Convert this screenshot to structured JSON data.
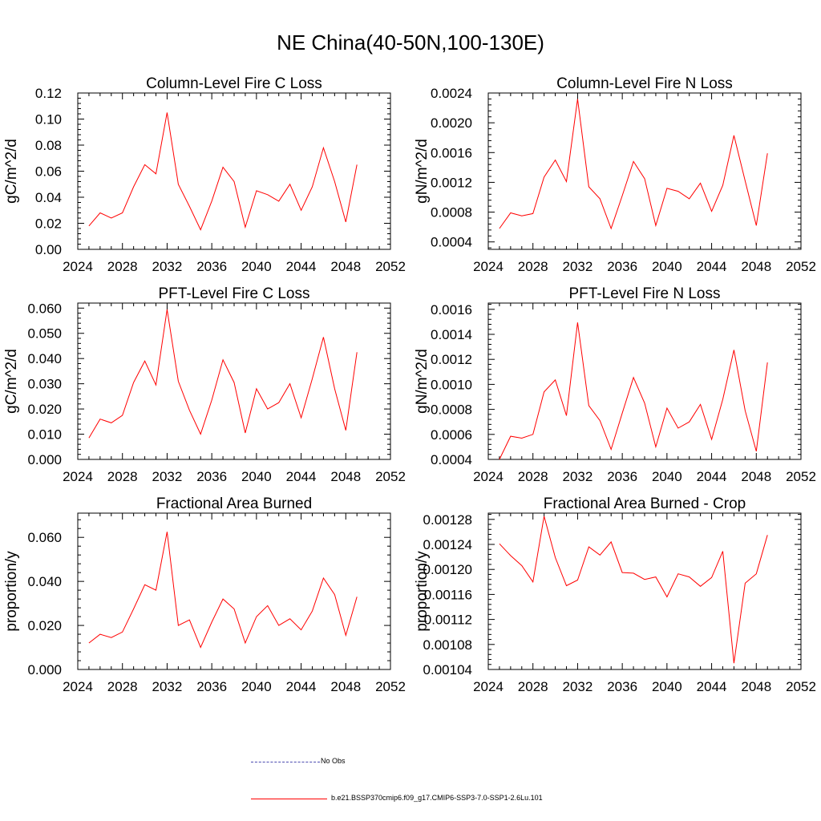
{
  "figure": {
    "title": "NE China(40-50N,100-130E)"
  },
  "legend": {
    "obs_label": "No Obs",
    "model_label": "b.e21.BSSP370cmip6.f09_g17.CMIP6-SSP3-7.0-SSP1-2.6Lu.101",
    "colors": {
      "obs": "#4a4ab0",
      "model": "#ff0000"
    }
  },
  "chart_data": [
    {
      "type": "line",
      "title": "Column-Level Fire C Loss",
      "xlabel": "",
      "ylabel": "gC/m^2/d",
      "xlim": [
        2024,
        2052
      ],
      "ylim": [
        0.0,
        0.12
      ],
      "xticks": [
        "2024",
        "2028",
        "2032",
        "2036",
        "2040",
        "2044",
        "2048",
        "2052"
      ],
      "yticks": [
        "0.00",
        "0.02",
        "0.04",
        "0.06",
        "0.08",
        "0.10",
        "0.12"
      ],
      "x": [
        2025,
        2026,
        2027,
        2028,
        2029,
        2030,
        2031,
        2032,
        2033,
        2034,
        2035,
        2036,
        2037,
        2038,
        2039,
        2040,
        2041,
        2042,
        2043,
        2044,
        2045,
        2046,
        2047,
        2048,
        2049
      ],
      "series": [
        {
          "color": "#ff0000",
          "values": [
            0.018,
            0.028,
            0.024,
            0.028,
            0.048,
            0.065,
            0.058,
            0.105,
            0.05,
            0.033,
            0.015,
            0.037,
            0.063,
            0.052,
            0.017,
            0.045,
            0.042,
            0.037,
            0.05,
            0.03,
            0.048,
            0.078,
            0.052,
            0.021,
            0.065
          ]
        }
      ]
    },
    {
      "type": "line",
      "title": "Column-Level Fire N Loss",
      "xlabel": "",
      "ylabel": "gN/m^2/d",
      "xlim": [
        2024,
        2052
      ],
      "ylim": [
        0.0003,
        0.0024
      ],
      "xticks": [
        "2024",
        "2028",
        "2032",
        "2036",
        "2040",
        "2044",
        "2048",
        "2052"
      ],
      "yticks": [
        "0.0004",
        "0.0008",
        "0.0012",
        "0.0016",
        "0.0020",
        "0.0024"
      ],
      "x": [
        2025,
        2026,
        2027,
        2028,
        2029,
        2030,
        2031,
        2032,
        2033,
        2034,
        2035,
        2036,
        2037,
        2038,
        2039,
        2040,
        2041,
        2042,
        2043,
        2044,
        2045,
        2046,
        2047,
        2048,
        2049
      ],
      "series": [
        {
          "color": "#ff0000",
          "values": [
            0.00058,
            0.00079,
            0.00075,
            0.00078,
            0.00127,
            0.0015,
            0.00121,
            0.00232,
            0.00114,
            0.00098,
            0.00058,
            0.00102,
            0.00148,
            0.00125,
            0.00062,
            0.00112,
            0.00108,
            0.00098,
            0.00119,
            0.00081,
            0.00116,
            0.00183,
            0.00122,
            0.00062,
            0.00159
          ]
        }
      ]
    },
    {
      "type": "line",
      "title": "PFT-Level Fire C Loss",
      "xlabel": "",
      "ylabel": "gC/m^2/d",
      "xlim": [
        2024,
        2052
      ],
      "ylim": [
        0.0,
        0.062
      ],
      "xticks": [
        "2024",
        "2028",
        "2032",
        "2036",
        "2040",
        "2044",
        "2048",
        "2052"
      ],
      "yticks": [
        "0.000",
        "0.010",
        "0.020",
        "0.030",
        "0.040",
        "0.050",
        "0.060"
      ],
      "x": [
        2025,
        2026,
        2027,
        2028,
        2029,
        2030,
        2031,
        2032,
        2033,
        2034,
        2035,
        2036,
        2037,
        2038,
        2039,
        2040,
        2041,
        2042,
        2043,
        2044,
        2045,
        2046,
        2047,
        2048,
        2049
      ],
      "series": [
        {
          "color": "#ff0000",
          "values": [
            0.0085,
            0.016,
            0.0145,
            0.0175,
            0.0305,
            0.039,
            0.0295,
            0.0595,
            0.031,
            0.0195,
            0.01,
            0.0235,
            0.0395,
            0.0305,
            0.0105,
            0.028,
            0.02,
            0.0225,
            0.03,
            0.0165,
            0.032,
            0.0485,
            0.028,
            0.0115,
            0.0425
          ]
        }
      ]
    },
    {
      "type": "line",
      "title": "PFT-Level Fire N Loss",
      "xlabel": "",
      "ylabel": "gN/m^2/d",
      "xlim": [
        2024,
        2052
      ],
      "ylim": [
        0.0004,
        0.00165
      ],
      "xticks": [
        "2024",
        "2028",
        "2032",
        "2036",
        "2040",
        "2044",
        "2048",
        "2052"
      ],
      "yticks": [
        "0.0004",
        "0.0006",
        "0.0008",
        "0.0010",
        "0.0012",
        "0.0014",
        "0.0016"
      ],
      "x": [
        2025,
        2026,
        2027,
        2028,
        2029,
        2030,
        2031,
        2032,
        2033,
        2034,
        2035,
        2036,
        2037,
        2038,
        2039,
        2040,
        2041,
        2042,
        2043,
        2044,
        2045,
        2046,
        2047,
        2048,
        2049
      ],
      "series": [
        {
          "color": "#ff0000",
          "values": [
            0.0004,
            0.000585,
            0.00057,
            0.0006,
            0.00094,
            0.001035,
            0.00075,
            0.001495,
            0.00083,
            0.00071,
            0.00048,
            0.00077,
            0.001055,
            0.00085,
            0.0005,
            0.00081,
            0.00065,
            0.0007,
            0.00084,
            0.00056,
            0.00088,
            0.001275,
            0.00079,
            0.000465,
            0.001175
          ]
        }
      ]
    },
    {
      "type": "line",
      "title": "Fractional Area Burned",
      "xlabel": "",
      "ylabel": "proportion/y",
      "xlim": [
        2024,
        2052
      ],
      "ylim": [
        0.0,
        0.071
      ],
      "xticks": [
        "2024",
        "2028",
        "2032",
        "2036",
        "2040",
        "2044",
        "2048",
        "2052"
      ],
      "yticks": [
        "0.000",
        "0.020",
        "0.040",
        "0.060"
      ],
      "x": [
        2025,
        2026,
        2027,
        2028,
        2029,
        2030,
        2031,
        2032,
        2033,
        2034,
        2035,
        2036,
        2037,
        2038,
        2039,
        2040,
        2041,
        2042,
        2043,
        2044,
        2045,
        2046,
        2047,
        2048,
        2049
      ],
      "series": [
        {
          "color": "#ff0000",
          "values": [
            0.012,
            0.016,
            0.0145,
            0.017,
            0.0275,
            0.0385,
            0.036,
            0.0625,
            0.02,
            0.0225,
            0.01,
            0.0215,
            0.032,
            0.0275,
            0.012,
            0.024,
            0.029,
            0.02,
            0.023,
            0.018,
            0.0265,
            0.0415,
            0.034,
            0.0155,
            0.033
          ]
        }
      ]
    },
    {
      "type": "line",
      "title": "Fractional Area Burned - Crop",
      "xlabel": "",
      "ylabel": "proportion/y",
      "xlim": [
        2024,
        2052
      ],
      "ylim": [
        0.00104,
        0.00129
      ],
      "xticks": [
        "2024",
        "2028",
        "2032",
        "2036",
        "2040",
        "2044",
        "2048",
        "2052"
      ],
      "yticks": [
        "0.00104",
        "0.00108",
        "0.00112",
        "0.00116",
        "0.00120",
        "0.00124",
        "0.00128"
      ],
      "x": [
        2025,
        2026,
        2027,
        2028,
        2029,
        2030,
        2031,
        2032,
        2033,
        2034,
        2035,
        2036,
        2037,
        2038,
        2039,
        2040,
        2041,
        2042,
        2043,
        2044,
        2045,
        2046,
        2047,
        2048,
        2049
      ],
      "series": [
        {
          "color": "#ff0000",
          "values": [
            0.001241,
            0.001222,
            0.001206,
            0.00118,
            0.001285,
            0.001219,
            0.001174,
            0.001183,
            0.001236,
            0.001223,
            0.001244,
            0.001195,
            0.001194,
            0.001184,
            0.001188,
            0.001156,
            0.001193,
            0.001188,
            0.001173,
            0.001187,
            0.001229,
            0.00105,
            0.001178,
            0.001193,
            0.001255
          ]
        }
      ]
    }
  ]
}
